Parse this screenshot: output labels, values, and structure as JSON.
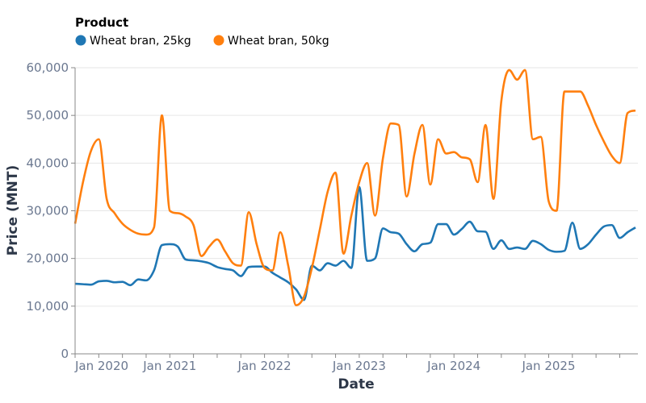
{
  "chart_data": {
    "type": "line",
    "xlabel": "Date",
    "ylabel": "Price (MNT)",
    "legend_title": "Product",
    "legend_placement": "top-left",
    "grid": true,
    "ylim": [
      0,
      60000
    ],
    "yticks": [
      0,
      10000,
      20000,
      30000,
      40000,
      50000,
      60000
    ],
    "ytick_labels": [
      "0",
      "10,000",
      "20,000",
      "30,000",
      "40,000",
      "50,000",
      "60,000"
    ],
    "xlim": [
      "2020-01",
      "2025-12"
    ],
    "xtick_labels": [
      {
        "date": "2020-01",
        "label": "Jan 2020"
      },
      {
        "date": "2021-01",
        "label": "Jan 2021"
      },
      {
        "date": "2022-01",
        "label": "Jan 2022"
      },
      {
        "date": "2023-01",
        "label": "Jan 2023"
      },
      {
        "date": "2024-01",
        "label": "Jan 2024"
      },
      {
        "date": "2025-01",
        "label": "Jan 2025"
      }
    ],
    "x": [
      "2020-01",
      "2020-02",
      "2020-03",
      "2020-04",
      "2020-05",
      "2020-06",
      "2020-07",
      "2020-08",
      "2020-09",
      "2020-10",
      "2020-11",
      "2020-12",
      "2021-01",
      "2021-02",
      "2021-03",
      "2021-04",
      "2021-05",
      "2021-06",
      "2021-07",
      "2021-08",
      "2021-09",
      "2021-10",
      "2021-11",
      "2021-12",
      "2022-01",
      "2022-02",
      "2022-03",
      "2022-04",
      "2022-05",
      "2022-06",
      "2022-07",
      "2022-08",
      "2022-09",
      "2022-10",
      "2022-11",
      "2022-12",
      "2023-01",
      "2023-02",
      "2023-03",
      "2023-04",
      "2023-05",
      "2023-06",
      "2023-07",
      "2023-08",
      "2023-09",
      "2023-10",
      "2023-11",
      "2023-12",
      "2024-01",
      "2024-02",
      "2024-03",
      "2024-04",
      "2024-05",
      "2024-06",
      "2024-07",
      "2024-08",
      "2024-09",
      "2024-10",
      "2024-11",
      "2024-12",
      "2025-01",
      "2025-02",
      "2025-03",
      "2025-04",
      "2025-05",
      "2025-06",
      "2025-07",
      "2025-08",
      "2025-09",
      "2025-10",
      "2025-11",
      "2025-12"
    ],
    "series": [
      {
        "name": "Wheat bran, 25kg",
        "color": "#1f77b4",
        "values": [
          14700,
          14600,
          14500,
          15200,
          15300,
          15000,
          15100,
          14400,
          15600,
          15400,
          17500,
          22800,
          23000,
          22500,
          19800,
          19600,
          19400,
          19000,
          18200,
          17800,
          17500,
          16300,
          18200,
          18300,
          18300,
          17000,
          16000,
          15000,
          13500,
          11300,
          18500,
          17500,
          19000,
          18500,
          19500,
          18000,
          35000,
          19500,
          20000,
          26300,
          25500,
          25200,
          23000,
          21500,
          23000,
          23300,
          27200,
          27200,
          25000,
          26200,
          27700,
          25700,
          25600,
          22000,
          23800,
          22000,
          22300,
          22000,
          23700,
          23000,
          21800,
          21400,
          21600,
          27500,
          22000,
          23000,
          25000,
          26700,
          27000,
          24300,
          25500,
          26500
        ]
      },
      {
        "name": "Wheat bran, 50kg",
        "color": "#ff7f0e",
        "values": [
          27300,
          36000,
          42500,
          45000,
          32500,
          29500,
          27300,
          26000,
          25200,
          25000,
          26500,
          50000,
          30000,
          29500,
          28800,
          27000,
          20500,
          22500,
          24000,
          21500,
          19000,
          18500,
          29700,
          23000,
          18000,
          17500,
          25500,
          18500,
          10200,
          12000,
          18000,
          26000,
          34000,
          38000,
          21000,
          29000,
          36000,
          40000,
          29000,
          41000,
          48300,
          48000,
          33000,
          42000,
          48000,
          35500,
          45000,
          42000,
          42300,
          41200,
          40800,
          36000,
          48000,
          32500,
          53000,
          59500,
          57500,
          59500,
          45000,
          45500,
          32000,
          30000,
          55000,
          55000,
          55000,
          52000,
          48000,
          44500,
          41500,
          40000,
          50500,
          51000
        ]
      }
    ]
  }
}
